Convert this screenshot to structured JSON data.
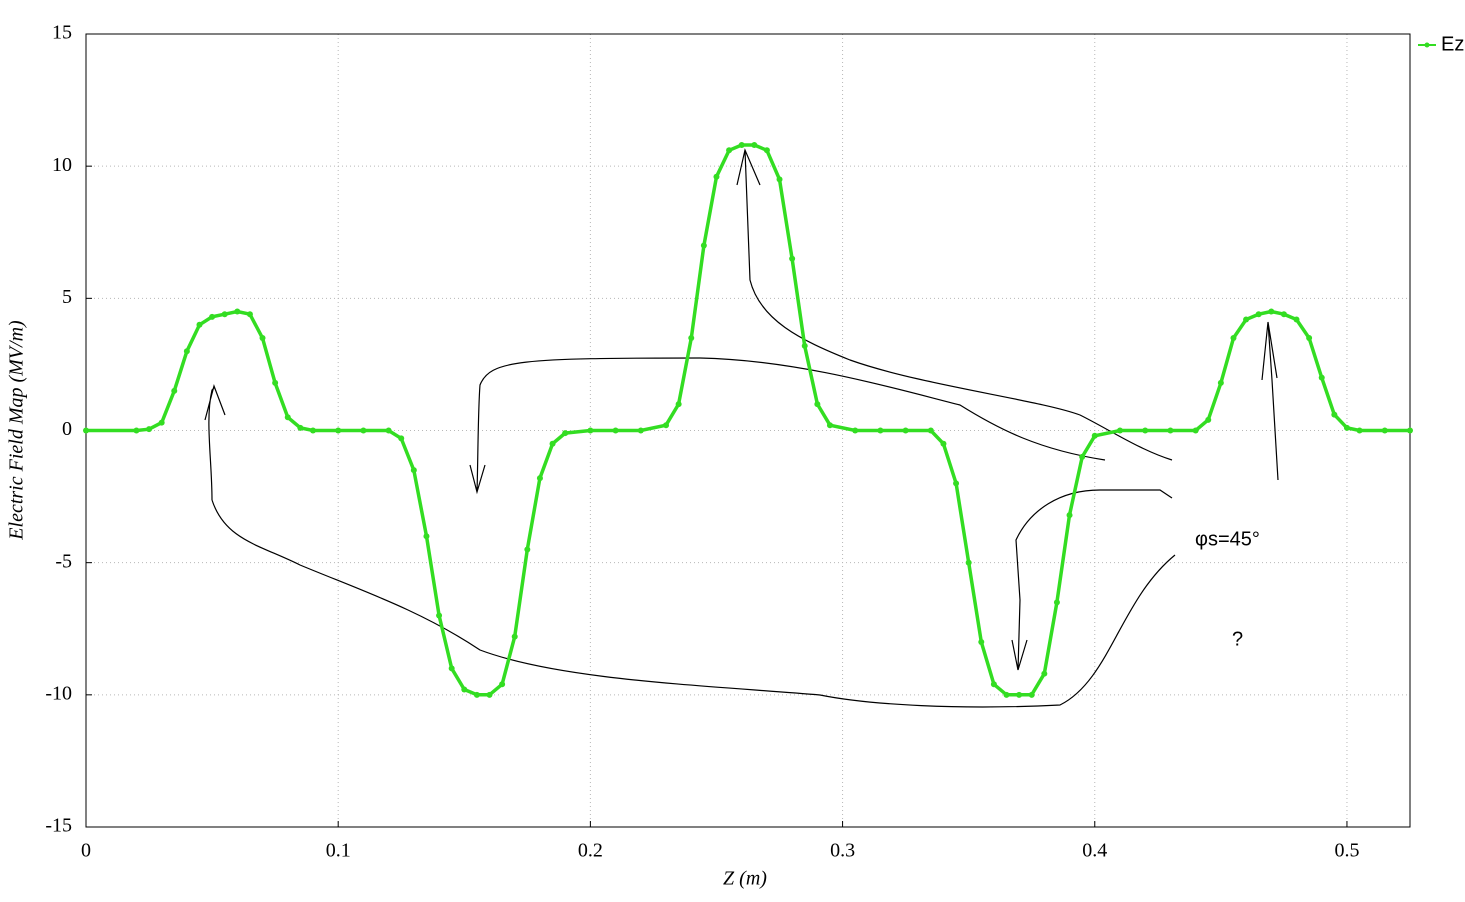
{
  "chart_data": {
    "type": "line",
    "x_label": "Z (m)",
    "y_label": "Electric Field Map (MV/m)",
    "x": [
      0,
      0.02,
      0.025,
      0.03,
      0.035,
      0.04,
      0.045,
      0.05,
      0.055,
      0.06,
      0.065,
      0.07,
      0.075,
      0.08,
      0.085,
      0.09,
      0.1,
      0.11,
      0.12,
      0.125,
      0.13,
      0.135,
      0.14,
      0.145,
      0.15,
      0.155,
      0.16,
      0.165,
      0.17,
      0.175,
      0.18,
      0.185,
      0.19,
      0.2,
      0.21,
      0.22,
      0.23,
      0.235,
      0.24,
      0.245,
      0.25,
      0.255,
      0.26,
      0.265,
      0.27,
      0.275,
      0.28,
      0.285,
      0.29,
      0.295,
      0.305,
      0.315,
      0.325,
      0.335,
      0.34,
      0.345,
      0.35,
      0.355,
      0.36,
      0.365,
      0.37,
      0.375,
      0.38,
      0.385,
      0.39,
      0.395,
      0.4,
      0.41,
      0.42,
      0.43,
      0.44,
      0.445,
      0.45,
      0.455,
      0.46,
      0.465,
      0.47,
      0.475,
      0.48,
      0.485,
      0.49,
      0.495,
      0.5,
      0.505,
      0.515,
      0.525
    ],
    "series": [
      {
        "name": "Ez",
        "color": "#33dd22",
        "values": [
          0,
          0,
          0.05,
          0.3,
          1.5,
          3.0,
          4.0,
          4.3,
          4.4,
          4.5,
          4.4,
          3.5,
          1.8,
          0.5,
          0.1,
          0,
          0,
          0,
          0,
          -0.3,
          -1.5,
          -4,
          -7,
          -9,
          -9.8,
          -10,
          -10,
          -9.6,
          -7.8,
          -4.5,
          -1.8,
          -0.5,
          -0.1,
          0,
          0,
          0,
          0.2,
          1.0,
          3.5,
          7,
          9.6,
          10.6,
          10.8,
          10.8,
          10.6,
          9.5,
          6.5,
          3.2,
          1.0,
          0.2,
          0,
          0,
          0,
          0,
          -0.5,
          -2,
          -5,
          -8,
          -9.6,
          -10,
          -10,
          -10,
          -9.2,
          -6.5,
          -3.2,
          -1,
          -0.2,
          0,
          0,
          0,
          0,
          0.4,
          1.8,
          3.5,
          4.2,
          4.4,
          4.5,
          4.4,
          4.2,
          3.5,
          2,
          0.6,
          0.1,
          0,
          0,
          0
        ]
      }
    ],
    "xlim": [
      0,
      0.525
    ],
    "ylim": [
      -15,
      15
    ],
    "xticks": [
      0,
      0.1,
      0.2,
      0.3,
      0.4,
      0.5
    ],
    "yticks": [
      15,
      10,
      5,
      0,
      -5,
      -10,
      -15
    ],
    "grid": true,
    "legend": "top-right",
    "annotations": [
      "φs=45°",
      "?"
    ]
  }
}
